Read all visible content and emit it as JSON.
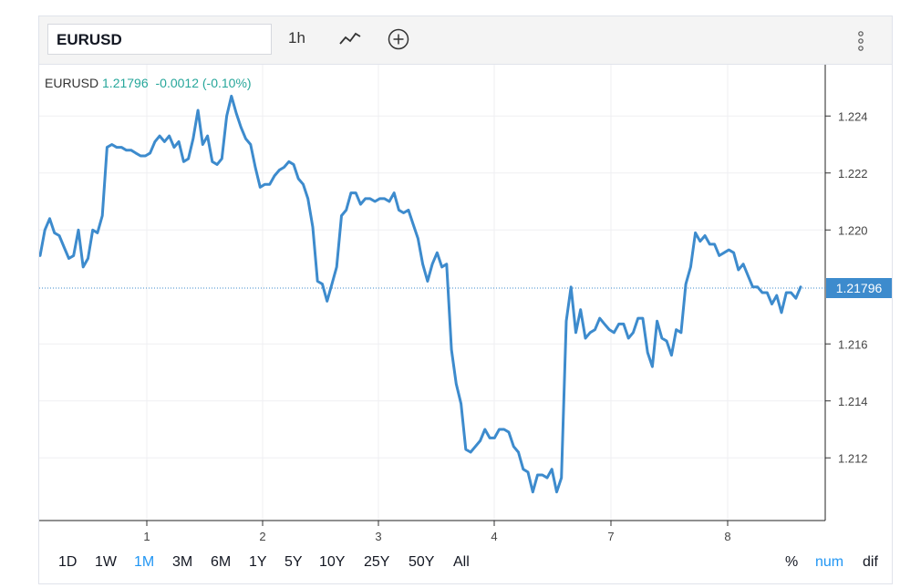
{
  "toolbar": {
    "symbol": "EURUSD",
    "interval": "1h",
    "chart_type_icon": "line-chart-icon",
    "compare_icon": "plus-circle-icon",
    "menu_icon": "kebab-menu-icon"
  },
  "legend": {
    "symbol": "EURUSD",
    "last": "1.21796",
    "change": "-0.0012 (-0.10%)"
  },
  "last_price_label": "1.21796",
  "ranges": [
    "1D",
    "1W",
    "1M",
    "3M",
    "6M",
    "1Y",
    "5Y",
    "10Y",
    "25Y",
    "50Y",
    "All"
  ],
  "active_range": "1M",
  "modes": {
    "percent": "%",
    "number": "num",
    "diff": "dif",
    "active": "num"
  },
  "colors": {
    "line": "#3d8bcd",
    "last_label_bg": "#3d8bcd",
    "change": "#26a69a",
    "active": "#2196f3"
  },
  "chart_data": {
    "type": "line",
    "title": "",
    "xlabel": "",
    "ylabel": "",
    "x_tick_labels": [
      "1",
      "2",
      "3",
      "4",
      "7",
      "8"
    ],
    "y_tick_labels": [
      "1.224",
      "1.222",
      "1.220",
      "1.216",
      "1.214",
      "1.212"
    ],
    "ylim": [
      1.2098,
      1.2258
    ],
    "grid": true,
    "series": [
      {
        "name": "EURUSD",
        "values": [
          1.2191,
          1.22,
          1.2204,
          1.2199,
          1.2198,
          1.2194,
          1.219,
          1.2191,
          1.22,
          1.2187,
          1.219,
          1.22,
          1.2199,
          1.2205,
          1.2229,
          1.223,
          1.2229,
          1.2229,
          1.2228,
          1.2228,
          1.2227,
          1.2226,
          1.2226,
          1.2227,
          1.2231,
          1.2233,
          1.2231,
          1.2233,
          1.2229,
          1.2231,
          1.2224,
          1.2225,
          1.2232,
          1.2242,
          1.223,
          1.2233,
          1.2224,
          1.2223,
          1.2225,
          1.224,
          1.2247,
          1.2241,
          1.2236,
          1.2232,
          1.223,
          1.2222,
          1.2215,
          1.2216,
          1.2216,
          1.2219,
          1.2221,
          1.2222,
          1.2224,
          1.2223,
          1.2218,
          1.2216,
          1.2211,
          1.2201,
          1.2182,
          1.2181,
          1.2175,
          1.2181,
          1.2187,
          1.2205,
          1.2207,
          1.2213,
          1.2213,
          1.2209,
          1.2211,
          1.2211,
          1.221,
          1.2211,
          1.2211,
          1.221,
          1.2213,
          1.2207,
          1.2206,
          1.2207,
          1.2202,
          1.2197,
          1.2188,
          1.2182,
          1.2188,
          1.2192,
          1.2187,
          1.2188,
          1.2158,
          1.2146,
          1.2139,
          1.2123,
          1.2122,
          1.2124,
          1.2126,
          1.213,
          1.2127,
          1.2127,
          1.213,
          1.213,
          1.2129,
          1.2124,
          1.2122,
          1.2116,
          1.2115,
          1.2108,
          1.2114,
          1.2114,
          1.2113,
          1.2116,
          1.2108,
          1.2113,
          1.2168,
          1.218,
          1.2164,
          1.2172,
          1.2162,
          1.2164,
          1.2165,
          1.2169,
          1.2167,
          1.2165,
          1.2164,
          1.2167,
          1.2167,
          1.2162,
          1.2164,
          1.2169,
          1.2169,
          1.2157,
          1.2152,
          1.2168,
          1.2162,
          1.2161,
          1.2156,
          1.2165,
          1.2164,
          1.2181,
          1.2187,
          1.2199,
          1.2196,
          1.2198,
          1.2195,
          1.2195,
          1.2191,
          1.2192,
          1.2193,
          1.2192,
          1.2186,
          1.2188,
          1.2184,
          1.218,
          1.218,
          1.2178,
          1.2178,
          1.2174,
          1.2177,
          1.2171,
          1.2178,
          1.2178,
          1.2176,
          1.218
        ]
      }
    ],
    "last_value": 1.21796
  }
}
